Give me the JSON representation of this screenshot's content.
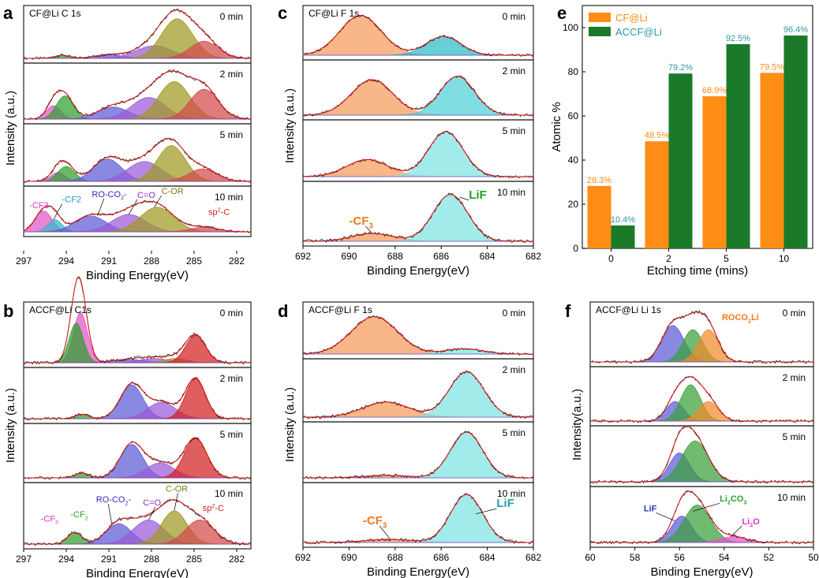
{
  "panels": [
    {
      "id": "a",
      "letter": "a",
      "title": "CF@Li  C 1s",
      "x_ticks": [
        297,
        294,
        291,
        288,
        285,
        282
      ],
      "x_range": [
        297,
        281
      ],
      "x_label": "Binding Energy(eV)",
      "y_label": "Intensity (a.u.)",
      "subplots": [
        {
          "time": "0 min",
          "peaks": [
            {
              "center": 294.3,
              "height": 0.07,
              "width": 0.5,
              "color": "#2ea02e"
            },
            {
              "center": 291.0,
              "height": 0.08,
              "width": 1.0,
              "color": "#5b5bd6"
            },
            {
              "center": 287.8,
              "height": 0.28,
              "width": 1.3,
              "color": "#9a5ad8"
            },
            {
              "center": 286.2,
              "height": 0.88,
              "width": 1.1,
              "color": "#9f9a22"
            },
            {
              "center": 284.3,
              "height": 0.38,
              "width": 1.0,
              "color": "#d24a4a"
            }
          ]
        },
        {
          "time": "2 min",
          "peaks": [
            {
              "center": 294.9,
              "height": 0.28,
              "width": 0.5,
              "color": "#e255c8"
            },
            {
              "center": 294.1,
              "height": 0.48,
              "width": 0.6,
              "color": "#2ea02e"
            },
            {
              "center": 290.7,
              "height": 0.25,
              "width": 1.1,
              "color": "#5b5bd6"
            },
            {
              "center": 288.2,
              "height": 0.45,
              "width": 1.2,
              "color": "#9a5ad8"
            },
            {
              "center": 286.4,
              "height": 0.78,
              "width": 1.1,
              "color": "#9f9a22"
            },
            {
              "center": 284.3,
              "height": 0.62,
              "width": 1.0,
              "color": "#d24a4a"
            }
          ]
        },
        {
          "time": "5 min",
          "peaks": [
            {
              "center": 294.6,
              "height": 0.18,
              "width": 0.5,
              "color": "#e255c8"
            },
            {
              "center": 294.0,
              "height": 0.3,
              "width": 0.6,
              "color": "#2ea02e"
            },
            {
              "center": 291.1,
              "height": 0.45,
              "width": 1.0,
              "color": "#5b5bd6"
            },
            {
              "center": 288.5,
              "height": 0.4,
              "width": 1.2,
              "color": "#9a5ad8"
            },
            {
              "center": 286.6,
              "height": 0.72,
              "width": 1.0,
              "color": "#9f9a22"
            },
            {
              "center": 284.4,
              "height": 0.25,
              "width": 1.0,
              "color": "#d24a4a"
            }
          ]
        },
        {
          "time": "10 min",
          "peaks": [
            {
              "center": 295.6,
              "height": 0.55,
              "width": 0.6,
              "color": "#e255c8"
            },
            {
              "center": 294.8,
              "height": 0.32,
              "width": 0.5,
              "color": "#33b8c8"
            },
            {
              "center": 292.3,
              "height": 0.42,
              "width": 1.1,
              "color": "#5b5bd6"
            },
            {
              "center": 289.6,
              "height": 0.46,
              "width": 1.2,
              "color": "#9a5ad8"
            },
            {
              "center": 287.6,
              "height": 0.65,
              "width": 1.2,
              "color": "#9f9a22"
            },
            {
              "center": 284.3,
              "height": 0.12,
              "width": 1.0,
              "color": "#d24a4a"
            }
          ]
        }
      ],
      "labels": [
        {
          "text": "-CF3",
          "color": "#e233c8",
          "at": [
            296.6,
            0.62
          ],
          "to": null
        },
        {
          "text": "-CF2",
          "color": "#1f9fbf",
          "at": [
            294.3,
            0.78
          ],
          "to": [
            294.9,
            0.32
          ]
        },
        {
          "text": "RO-CO",
          "sub": "2",
          "tail": "-",
          "color": "#2e2eb8",
          "at": [
            292.2,
            0.92
          ],
          "to": [
            291.8,
            0.42
          ]
        },
        {
          "text": "C=O",
          "color": "#8a2ec8",
          "at": [
            289.0,
            0.9
          ],
          "to": [
            289.6,
            0.46
          ]
        },
        {
          "text": "C-OR",
          "color": "#7a7a10",
          "at": [
            287.3,
            1.0
          ],
          "to": [
            287.8,
            0.65
          ]
        },
        {
          "text": "sp",
          "sup": "2",
          "tail": "-C",
          "color": "#d22020",
          "at": [
            284.0,
            0.45
          ],
          "to": null
        }
      ]
    },
    {
      "id": "b",
      "letter": "b",
      "title": "ACCF@Li  C1s",
      "x_ticks": [
        297,
        294,
        291,
        288,
        285,
        282
      ],
      "x_range": [
        297,
        281
      ],
      "x_label": "Binding Energy(eV)",
      "y_label": "Intensity (a.u.)",
      "subplots": [
        {
          "time": "0 min",
          "peaks": [
            {
              "center": 293.0,
              "height": 0.95,
              "width": 0.5,
              "color": "#e255c8"
            },
            {
              "center": 293.3,
              "height": 0.75,
              "width": 0.5,
              "color": "#2ea02e"
            },
            {
              "center": 289.6,
              "height": 0.06,
              "width": 1.2,
              "color": "#5b5bd6"
            },
            {
              "center": 287.8,
              "height": 0.08,
              "width": 1.0,
              "color": "#9a5ad8"
            },
            {
              "center": 286.3,
              "height": 0.08,
              "width": 0.8,
              "color": "#9f9a22"
            },
            {
              "center": 284.9,
              "height": 0.52,
              "width": 0.7,
              "color": "#d22020"
            }
          ]
        },
        {
          "time": "2 min",
          "peaks": [
            {
              "center": 292.9,
              "height": 0.1,
              "width": 0.5,
              "color": "#2ea02e"
            },
            {
              "center": 289.4,
              "height": 0.78,
              "width": 0.8,
              "color": "#5b5bd6"
            },
            {
              "center": 287.3,
              "height": 0.38,
              "width": 1.0,
              "color": "#9a5ad8"
            },
            {
              "center": 284.9,
              "height": 0.92,
              "width": 0.7,
              "color": "#d22020"
            }
          ]
        },
        {
          "time": "5 min",
          "peaks": [
            {
              "center": 292.9,
              "height": 0.1,
              "width": 0.5,
              "color": "#2ea02e"
            },
            {
              "center": 289.4,
              "height": 0.72,
              "width": 0.8,
              "color": "#5b5bd6"
            },
            {
              "center": 287.4,
              "height": 0.32,
              "width": 1.0,
              "color": "#9a5ad8"
            },
            {
              "center": 284.9,
              "height": 0.85,
              "width": 0.8,
              "color": "#d22020"
            }
          ]
        },
        {
          "time": "10 min",
          "peaks": [
            {
              "center": 293.4,
              "height": 0.22,
              "width": 0.5,
              "color": "#2ea02e"
            },
            {
              "center": 290.3,
              "height": 0.38,
              "width": 0.9,
              "color": "#5b5bd6"
            },
            {
              "center": 288.2,
              "height": 0.45,
              "width": 1.1,
              "color": "#9a5ad8"
            },
            {
              "center": 286.4,
              "height": 0.62,
              "width": 0.9,
              "color": "#9f9a22"
            },
            {
              "center": 284.6,
              "height": 0.45,
              "width": 1.0,
              "color": "#d24a4a"
            }
          ]
        }
      ],
      "labels": [
        {
          "text": "-CF",
          "sub": "3",
          "color": "#e233c8",
          "at": [
            295.8,
            0.42
          ],
          "to": null
        },
        {
          "text": "-CF",
          "sub": "2",
          "color": "#2ea02e",
          "at": [
            293.7,
            0.5
          ],
          "to": null
        },
        {
          "text": "RO-CO",
          "sub": "2",
          "tail": "-",
          "color": "#2e2eb8",
          "at": [
            291.9,
            0.78
          ],
          "to": [
            290.8,
            0.38
          ]
        },
        {
          "text": "C=O",
          "color": "#8a2ec8",
          "at": [
            288.6,
            0.72
          ],
          "to": [
            288.2,
            0.45
          ]
        },
        {
          "text": "C-OR",
          "color": "#7a7a10",
          "at": [
            287.0,
            0.98
          ],
          "to": [
            286.4,
            0.62
          ]
        },
        {
          "text": "sp",
          "sup": "2",
          "tail": "-C",
          "color": "#d22020",
          "at": [
            284.4,
            0.62
          ],
          "to": null
        }
      ]
    },
    {
      "id": "c",
      "letter": "c",
      "title": "CF@Li  F 1s",
      "x_ticks": [
        692,
        690,
        688,
        686,
        684,
        682
      ],
      "x_range": [
        692,
        682
      ],
      "x_label": "Binding Energy(eV)",
      "y_label": "Intensity (a.u.)",
      "subplots": [
        {
          "time": "0 min",
          "peaks": [
            {
              "center": 689.5,
              "height": 0.95,
              "width": 0.9,
              "color": "#f59a5c"
            },
            {
              "center": 685.9,
              "height": 0.45,
              "width": 0.75,
              "color": "#2bbcc9"
            }
          ]
        },
        {
          "time": "2 min",
          "peaks": [
            {
              "center": 689.0,
              "height": 0.75,
              "width": 0.9,
              "color": "#f59a5c"
            },
            {
              "center": 685.3,
              "height": 0.82,
              "width": 0.75,
              "color": "#4fd0d6"
            }
          ]
        },
        {
          "time": "5 min",
          "peaks": [
            {
              "center": 689.2,
              "height": 0.35,
              "width": 0.9,
              "color": "#f59a5c"
            },
            {
              "center": 685.8,
              "height": 0.92,
              "width": 0.75,
              "color": "#7ee3e3"
            }
          ]
        },
        {
          "time": "10 min",
          "peaks": [
            {
              "center": 689.0,
              "height": 0.15,
              "width": 0.9,
              "color": "#f59a5c"
            },
            {
              "center": 685.6,
              "height": 0.9,
              "width": 0.75,
              "color": "#7ee3e3"
            }
          ]
        }
      ],
      "labels": [
        {
          "text": "-CF",
          "sub": "3",
          "color": "#f07a1a",
          "at": [
            690.0,
            0.32
          ],
          "to": [
            689.0,
            0.15
          ],
          "size": 15,
          "bold": true
        },
        {
          "text": "LiF",
          "color": "#20a020",
          "at": [
            684.8,
            0.82
          ],
          "to": [
            685.2,
            0.85
          ],
          "size": 15,
          "bold": true
        }
      ]
    },
    {
      "id": "d",
      "letter": "d",
      "title": "ACCF@Li  F 1s",
      "x_ticks": [
        692,
        690,
        688,
        686,
        684,
        682
      ],
      "x_range": [
        692,
        682
      ],
      "x_label": "Binding Energy(eV)",
      "y_label": "Intensity (a.u.)",
      "subplots": [
        {
          "time": "0 min",
          "peaks": [
            {
              "center": 688.9,
              "height": 0.85,
              "width": 1.0,
              "color": "#f59a5c"
            },
            {
              "center": 685.0,
              "height": 0.12,
              "width": 0.8,
              "color": "#7ee3e3"
            }
          ]
        },
        {
          "time": "2 min",
          "peaks": [
            {
              "center": 688.4,
              "height": 0.3,
              "width": 1.0,
              "color": "#f59a5c"
            },
            {
              "center": 684.9,
              "height": 0.9,
              "width": 0.75,
              "color": "#7ee3e3"
            }
          ]
        },
        {
          "time": "5 min",
          "peaks": [
            {
              "center": 688.4,
              "height": 0.05,
              "width": 1.0,
              "color": "#f59a5c"
            },
            {
              "center": 684.9,
              "height": 0.95,
              "width": 0.7,
              "color": "#7ee3e3"
            }
          ]
        },
        {
          "time": "10 min",
          "peaks": [
            {
              "center": 688.3,
              "height": 0.06,
              "width": 1.0,
              "color": "#f59a5c"
            },
            {
              "center": 684.9,
              "height": 0.92,
              "width": 0.7,
              "color": "#7ee3e3"
            }
          ]
        }
      ],
      "labels": [
        {
          "text": "-CF",
          "sub": "3",
          "color": "#f07a1a",
          "at": [
            689.4,
            0.35
          ],
          "to": [
            688.2,
            0.06
          ],
          "size": 15,
          "bold": true
        },
        {
          "text": "LiF",
          "color": "#2aa0b0",
          "at": [
            683.6,
            0.68
          ],
          "to": [
            684.5,
            0.55
          ],
          "size": 15,
          "bold": true
        }
      ]
    },
    {
      "id": "f",
      "letter": "f",
      "title": "ACCF@Li Li 1s",
      "x_ticks": [
        60,
        58,
        56,
        54,
        52,
        50
      ],
      "x_range": [
        60,
        50
      ],
      "x_label": "Binding Energy(eV)",
      "y_label": "Intensity(a.u.)",
      "subplots": [
        {
          "time": "0 min",
          "peaks": [
            {
              "center": 56.3,
              "height": 0.7,
              "width": 0.5,
              "color": "#5b5bd6"
            },
            {
              "center": 55.4,
              "height": 0.62,
              "width": 0.45,
              "color": "#3aa03a"
            },
            {
              "center": 54.7,
              "height": 0.62,
              "width": 0.45,
              "color": "#f08a2a"
            }
          ]
        },
        {
          "time": "2 min",
          "peaks": [
            {
              "center": 56.2,
              "height": 0.42,
              "width": 0.4,
              "color": "#5b5bd6"
            },
            {
              "center": 55.5,
              "height": 0.78,
              "width": 0.45,
              "color": "#3aa03a"
            },
            {
              "center": 54.7,
              "height": 0.42,
              "width": 0.45,
              "color": "#f08a2a"
            }
          ]
        },
        {
          "time": "5 min",
          "peaks": [
            {
              "center": 56.0,
              "height": 0.6,
              "width": 0.45,
              "color": "#5b5bd6"
            },
            {
              "center": 55.3,
              "height": 0.85,
              "width": 0.6,
              "color": "#3aa03a"
            }
          ]
        },
        {
          "time": "10 min",
          "peaks": [
            {
              "center": 55.9,
              "height": 0.55,
              "width": 0.45,
              "color": "#5b5bd6"
            },
            {
              "center": 55.2,
              "height": 0.78,
              "width": 0.6,
              "color": "#3aa03a"
            },
            {
              "center": 53.6,
              "height": 0.12,
              "width": 0.6,
              "color": "#e255c8"
            }
          ]
        }
      ],
      "labels": [
        {
          "text": "ROCO",
          "sub": "2",
          "tail": "Li",
          "color": "#f07a1a",
          "at": [
            54.1,
            0.8
          ],
          "to": null,
          "bold": true
        },
        {
          "text": "LiF",
          "color": "#2e2eb8",
          "at": [
            57.6,
            0.65
          ],
          "to": [
            56.2,
            0.45
          ],
          "bold": true
        },
        {
          "text": "Li",
          "sub": "2",
          "tail": "CO",
          "sub2": "3",
          "color": "#2ea02e",
          "at": [
            54.2,
            0.85
          ],
          "to": [
            55.4,
            0.65
          ],
          "bold": true
        },
        {
          "text": "Li",
          "sub": "2",
          "tail": "O",
          "color": "#e233c8",
          "at": [
            53.2,
            0.38
          ],
          "to": [
            53.7,
            0.12
          ],
          "bold": true
        }
      ]
    }
  ],
  "chart_data": {
    "type": "bar",
    "letter": "e",
    "categories": [
      "0",
      "2",
      "5",
      "10"
    ],
    "series": [
      {
        "name": "CF@Li",
        "color": "#ff8c14",
        "values": [
          28.3,
          48.5,
          68.9,
          79.5
        ],
        "labels": [
          "28.3%",
          "48.5%",
          "68.9%",
          "79.5%"
        ],
        "label_color": "#ff8c14"
      },
      {
        "name": "ACCF@Li",
        "color": "#1a7a2a",
        "values": [
          10.4,
          79.2,
          92.5,
          96.4
        ],
        "labels": [
          "10.4%",
          "79.2%",
          "92.5%",
          "96.4%"
        ],
        "label_color": "#2a9aa0"
      }
    ],
    "xlabel": "Etching time (mins)",
    "ylabel": "Atomic %",
    "ylim": [
      0,
      110
    ],
    "y_ticks": [
      0,
      20,
      40,
      60,
      80,
      100
    ],
    "legend": "top-left"
  }
}
